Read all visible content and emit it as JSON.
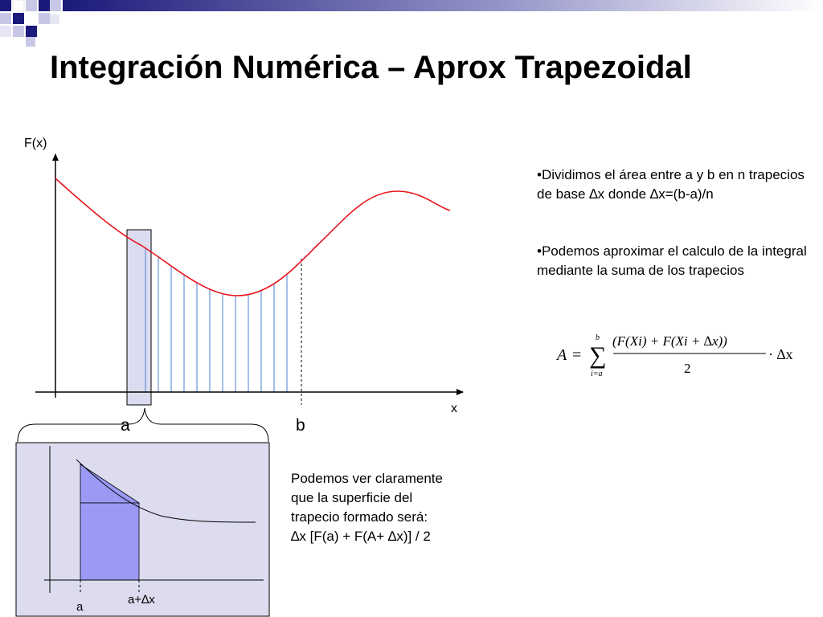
{
  "title": "Integración Numérica – Aprox Trapezoidal",
  "bullets": [
    "•Dividimos el área entre a y b en n trapecios de base ∆x donde ∆x=(b-a)/n",
    "•Podemos aproximar el calculo de la integral mediante la suma de los trapecios"
  ],
  "main_graph": {
    "y_label": "F(x)",
    "x_label": "x",
    "a_label": "a",
    "b_label": "b",
    "curve_color": "#e8141c",
    "strip_color": "#4a7fd6",
    "highlight_fill": "#dcdcf0"
  },
  "formula": {
    "lhs": "A",
    "eq": "=",
    "sum_top": "b",
    "sum_bottom": "i=a",
    "numerator": "(F(Xi) + F(Xi + ∆x))",
    "denominator": "2",
    "factor": "· ∆x"
  },
  "inset": {
    "text_lines": [
      "Podemos ver claramente",
      "que la superficie del",
      "trapecio formado será:",
      "∆x [F(a) + F(A+ ∆x)] / 2"
    ],
    "a_label": "a",
    "a_dx_label": "a+∆x",
    "panel_fill": "#dcdcee",
    "trapezoid_fill": "#9a9af5"
  }
}
